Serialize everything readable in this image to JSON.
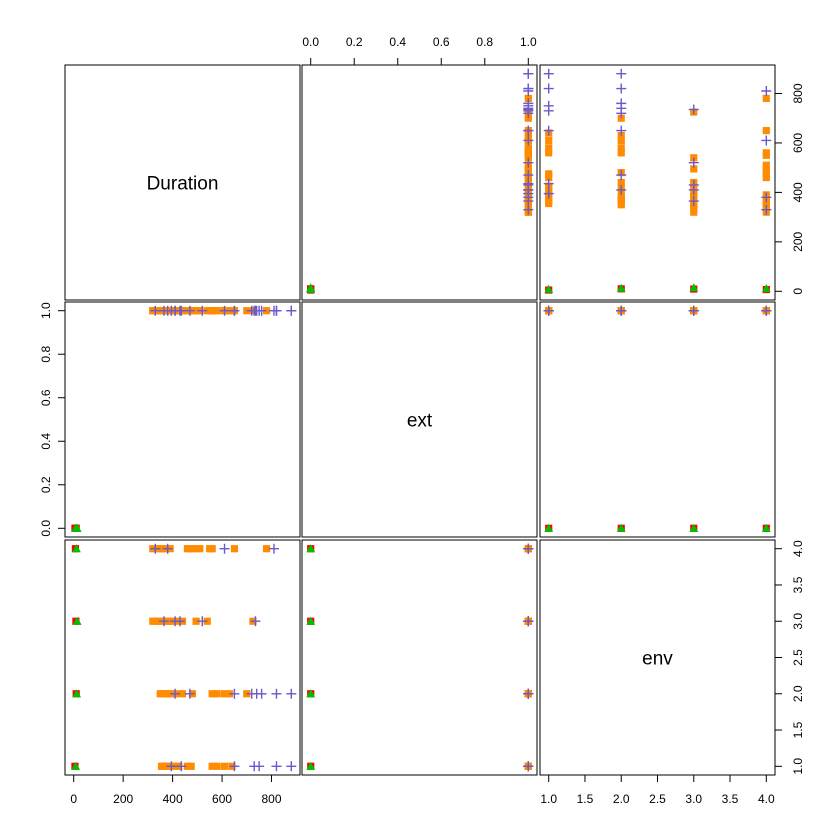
{
  "chart_data": {
    "type": "scatter-matrix",
    "variables": [
      "Duration",
      "ext",
      "env"
    ],
    "ranges": {
      "Duration": [
        0,
        880
      ],
      "ext": [
        0,
        1
      ],
      "env": [
        1,
        4
      ]
    },
    "ticks": {
      "Duration": {
        "values": [
          0,
          200,
          400,
          600,
          800
        ],
        "labels": [
          "0",
          "200",
          "400",
          "600",
          "800"
        ]
      },
      "ext": {
        "values": [
          0,
          0.2,
          0.4,
          0.6,
          0.8,
          1.0
        ],
        "labels": [
          "0.0",
          "0.2",
          "0.4",
          "0.6",
          "0.8",
          "1.0"
        ]
      },
      "env": {
        "values": [
          1,
          1.5,
          2,
          2.5,
          3,
          3.5,
          4
        ],
        "labels": [
          "1.0",
          "1.5",
          "2.0",
          "2.5",
          "3.0",
          "3.5",
          "4.0"
        ]
      }
    },
    "groups": [
      {
        "id": "g1",
        "marker": "triangle",
        "color": "#00c000"
      },
      {
        "id": "g2",
        "marker": "square",
        "color": "#ff8c00"
      },
      {
        "id": "g3",
        "marker": "plus",
        "color": "#6a5acd"
      },
      {
        "id": "g4",
        "marker": "square",
        "color": "#ff0000"
      }
    ],
    "points": [
      [
        5,
        0,
        1,
        "g4"
      ],
      [
        8,
        0,
        1,
        "g1"
      ],
      [
        10,
        0,
        2,
        "g4"
      ],
      [
        12,
        0,
        2,
        "g1"
      ],
      [
        9,
        0,
        3,
        "g4"
      ],
      [
        14,
        0,
        3,
        "g1"
      ],
      [
        7,
        0,
        4,
        "g4"
      ],
      [
        11,
        0,
        4,
        "g1"
      ],
      [
        355,
        1,
        1,
        "g2"
      ],
      [
        365,
        1,
        1,
        "g2"
      ],
      [
        375,
        1,
        1,
        "g2"
      ],
      [
        385,
        1,
        1,
        "g2"
      ],
      [
        395,
        1,
        1,
        "g3"
      ],
      [
        405,
        1,
        1,
        "g2"
      ],
      [
        415,
        1,
        1,
        "g2"
      ],
      [
        425,
        1,
        1,
        "g2"
      ],
      [
        435,
        1,
        1,
        "g3"
      ],
      [
        460,
        1,
        1,
        "g2"
      ],
      [
        475,
        1,
        1,
        "g2"
      ],
      [
        560,
        1,
        1,
        "g2"
      ],
      [
        580,
        1,
        1,
        "g2"
      ],
      [
        610,
        1,
        1,
        "g2"
      ],
      [
        640,
        1,
        1,
        "g2"
      ],
      [
        650,
        1,
        1,
        "g3"
      ],
      [
        730,
        1,
        1,
        "g3"
      ],
      [
        750,
        1,
        1,
        "g3"
      ],
      [
        820,
        1,
        1,
        "g3"
      ],
      [
        880,
        1,
        1,
        "g3"
      ],
      [
        350,
        1,
        2,
        "g2"
      ],
      [
        360,
        1,
        2,
        "g2"
      ],
      [
        372,
        1,
        2,
        "g2"
      ],
      [
        380,
        1,
        2,
        "g2"
      ],
      [
        395,
        1,
        2,
        "g2"
      ],
      [
        410,
        1,
        2,
        "g3"
      ],
      [
        420,
        1,
        2,
        "g2"
      ],
      [
        440,
        1,
        2,
        "g2"
      ],
      [
        470,
        1,
        2,
        "g3"
      ],
      [
        480,
        1,
        2,
        "g2"
      ],
      [
        560,
        1,
        2,
        "g2"
      ],
      [
        580,
        1,
        2,
        "g2"
      ],
      [
        610,
        1,
        2,
        "g2"
      ],
      [
        630,
        1,
        2,
        "g2"
      ],
      [
        650,
        1,
        2,
        "g3"
      ],
      [
        700,
        1,
        2,
        "g2"
      ],
      [
        720,
        1,
        2,
        "g3"
      ],
      [
        740,
        1,
        2,
        "g3"
      ],
      [
        760,
        1,
        2,
        "g3"
      ],
      [
        820,
        1,
        2,
        "g3"
      ],
      [
        880,
        1,
        2,
        "g3"
      ],
      [
        320,
        1,
        3,
        "g2"
      ],
      [
        335,
        1,
        3,
        "g2"
      ],
      [
        345,
        1,
        3,
        "g2"
      ],
      [
        355,
        1,
        3,
        "g2"
      ],
      [
        365,
        1,
        3,
        "g3"
      ],
      [
        375,
        1,
        3,
        "g2"
      ],
      [
        385,
        1,
        3,
        "g2"
      ],
      [
        400,
        1,
        3,
        "g2"
      ],
      [
        410,
        1,
        3,
        "g3"
      ],
      [
        420,
        1,
        3,
        "g2"
      ],
      [
        430,
        1,
        3,
        "g3"
      ],
      [
        440,
        1,
        3,
        "g2"
      ],
      [
        495,
        1,
        3,
        "g2"
      ],
      [
        520,
        1,
        3,
        "g3"
      ],
      [
        540,
        1,
        3,
        "g2"
      ],
      [
        725,
        1,
        3,
        "g2"
      ],
      [
        735,
        1,
        3,
        "g3"
      ],
      [
        320,
        1,
        4,
        "g2"
      ],
      [
        330,
        1,
        4,
        "g3"
      ],
      [
        340,
        1,
        4,
        "g2"
      ],
      [
        350,
        1,
        4,
        "g2"
      ],
      [
        360,
        1,
        4,
        "g2"
      ],
      [
        370,
        1,
        4,
        "g2"
      ],
      [
        380,
        1,
        4,
        "g3"
      ],
      [
        390,
        1,
        4,
        "g2"
      ],
      [
        460,
        1,
        4,
        "g2"
      ],
      [
        475,
        1,
        4,
        "g2"
      ],
      [
        490,
        1,
        4,
        "g2"
      ],
      [
        510,
        1,
        4,
        "g2"
      ],
      [
        550,
        1,
        4,
        "g2"
      ],
      [
        560,
        1,
        4,
        "g2"
      ],
      [
        610,
        1,
        4,
        "g3"
      ],
      [
        650,
        1,
        4,
        "g2"
      ],
      [
        780,
        1,
        4,
        "g2"
      ],
      [
        810,
        1,
        4,
        "g3"
      ]
    ]
  }
}
